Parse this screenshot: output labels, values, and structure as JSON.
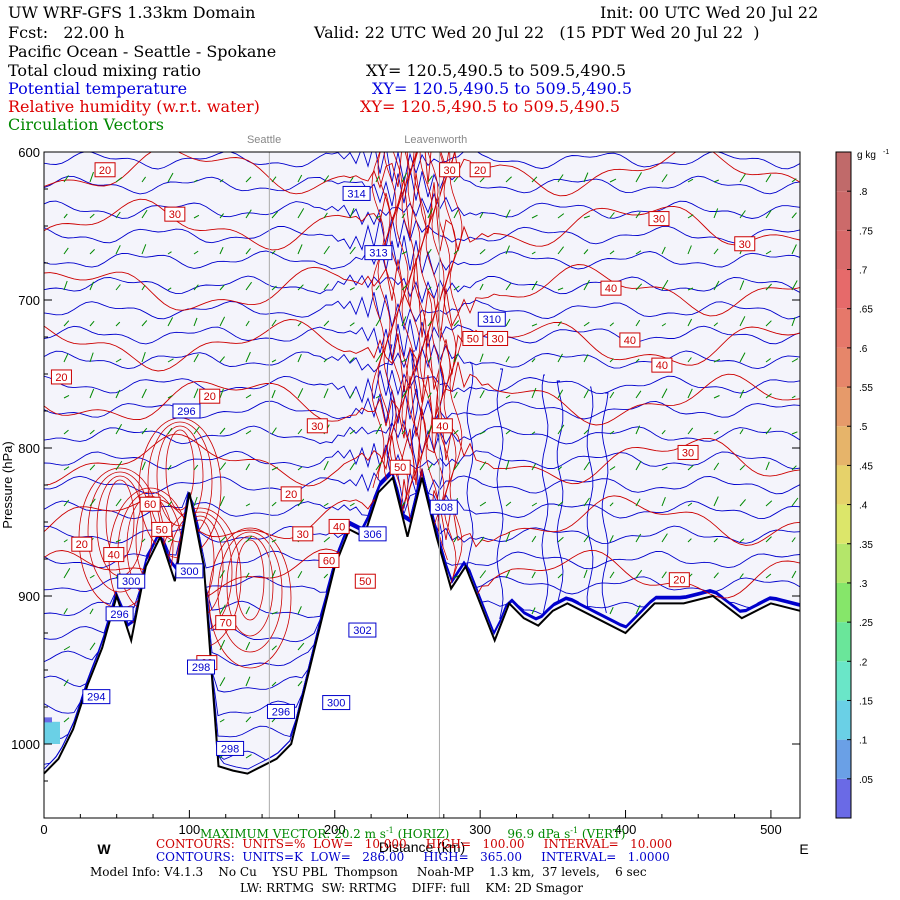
{
  "header": {
    "title": "UW WRF-GFS 1.33km Domain",
    "init": "Init: 00 UTC Wed 20 Jul 22",
    "fcst": "Fcst:   22.00 h",
    "valid": "Valid: 22 UTC Wed 20 Jul 22   (15 PDT Wed 20 Jul 22  )",
    "region": "Pacific Ocean - Seattle - Spokane",
    "fields": [
      {
        "name": "Total cloud mixing ratio",
        "xy": "XY= 120.5,490.5 to 509.5,490.5",
        "color": "#000000"
      },
      {
        "name": "Potential temperature",
        "xy": "XY= 120.5,490.5 to 509.5,490.5",
        "color": "#0000dd"
      },
      {
        "name": "Relative humidity (w.r.t. water)",
        "xy": "XY= 120.5,490.5 to 509.5,490.5",
        "color": "#dd0000"
      },
      {
        "name": "Circulation Vectors",
        "xy": "",
        "color": "#008800"
      }
    ]
  },
  "locations": [
    {
      "name": "Seattle",
      "x": 155
    },
    {
      "name": "Leavenworth",
      "x": 272
    }
  ],
  "chart_data": {
    "type": "cross-section contour",
    "xlabel": "Distance (km)",
    "ylabel": "Pressure (hPa)",
    "xlim": [
      0,
      520
    ],
    "ylim": [
      1050,
      600
    ],
    "x_ticks": [
      0,
      100,
      200,
      300,
      400,
      500
    ],
    "y_ticks": [
      600,
      700,
      800,
      900,
      1000
    ],
    "y_tick_labels": [
      "600",
      "700",
      "800",
      "900",
      "1000"
    ],
    "x_end_labels": {
      "west": "W",
      "east": "E"
    },
    "terrain_pressure": {
      "x": [
        0,
        10,
        20,
        30,
        40,
        50,
        60,
        70,
        80,
        90,
        100,
        110,
        120,
        130,
        140,
        150,
        160,
        170,
        180,
        190,
        200,
        210,
        220,
        230,
        240,
        250,
        255,
        260,
        270,
        280,
        290,
        300,
        310,
        320,
        330,
        340,
        350,
        360,
        380,
        400,
        420,
        440,
        460,
        480,
        500,
        520
      ],
      "p": [
        1020,
        1010,
        990,
        960,
        935,
        900,
        930,
        880,
        860,
        890,
        830,
        880,
        1015,
        1018,
        1020,
        1015,
        1010,
        1000,
        960,
        920,
        880,
        855,
        860,
        830,
        820,
        860,
        840,
        820,
        860,
        895,
        880,
        905,
        930,
        905,
        915,
        920,
        910,
        905,
        915,
        925,
        905,
        905,
        900,
        915,
        905,
        910
      ]
    },
    "contours": {
      "theta": {
        "units": "K",
        "low": "286.00",
        "high": "365.00",
        "interval": "1.0000",
        "labels": [
          {
            "x": 215,
            "p": 628,
            "v": "314"
          },
          {
            "x": 230,
            "p": 668,
            "v": "313"
          },
          {
            "x": 308,
            "p": 713,
            "v": "310"
          },
          {
            "x": 98,
            "p": 775,
            "v": "296"
          },
          {
            "x": 275,
            "p": 840,
            "v": "308"
          },
          {
            "x": 226,
            "p": 858,
            "v": "306"
          },
          {
            "x": 60,
            "p": 890,
            "v": "300"
          },
          {
            "x": 100,
            "p": 883,
            "v": "300"
          },
          {
            "x": 52,
            "p": 912,
            "v": "296"
          },
          {
            "x": 108,
            "p": 948,
            "v": "298"
          },
          {
            "x": 163,
            "p": 978,
            "v": "296"
          },
          {
            "x": 201,
            "p": 972,
            "v": "300"
          },
          {
            "x": 36,
            "p": 968,
            "v": "294"
          },
          {
            "x": 219,
            "p": 923,
            "v": "302"
          },
          {
            "x": 128,
            "p": 1003,
            "v": "298"
          }
        ]
      },
      "rh": {
        "units": "%",
        "low": "10.000",
        "high": "100.00",
        "interval": "10.000",
        "labels": [
          {
            "x": 42,
            "p": 612,
            "v": "20"
          },
          {
            "x": 90,
            "p": 642,
            "v": "30"
          },
          {
            "x": 279,
            "p": 612,
            "v": "30"
          },
          {
            "x": 300,
            "p": 612,
            "v": "20"
          },
          {
            "x": 423,
            "p": 645,
            "v": "30"
          },
          {
            "x": 482,
            "p": 662,
            "v": "30"
          },
          {
            "x": 390,
            "p": 692,
            "v": "40"
          },
          {
            "x": 403,
            "p": 727,
            "v": "40"
          },
          {
            "x": 425,
            "p": 744,
            "v": "40"
          },
          {
            "x": 295,
            "p": 726,
            "v": "50"
          },
          {
            "x": 312,
            "p": 726,
            "v": "30"
          },
          {
            "x": 12,
            "p": 752,
            "v": "20"
          },
          {
            "x": 114,
            "p": 765,
            "v": "20"
          },
          {
            "x": 188,
            "p": 785,
            "v": "30"
          },
          {
            "x": 274,
            "p": 785,
            "v": "40"
          },
          {
            "x": 443,
            "p": 803,
            "v": "30"
          },
          {
            "x": 245,
            "p": 813,
            "v": "50"
          },
          {
            "x": 170,
            "p": 831,
            "v": "20"
          },
          {
            "x": 73,
            "p": 838,
            "v": "60"
          },
          {
            "x": 81,
            "p": 855,
            "v": "50"
          },
          {
            "x": 26,
            "p": 865,
            "v": "20"
          },
          {
            "x": 48,
            "p": 872,
            "v": "40"
          },
          {
            "x": 178,
            "p": 858,
            "v": "30"
          },
          {
            "x": 203,
            "p": 853,
            "v": "40"
          },
          {
            "x": 196,
            "p": 876,
            "v": "60"
          },
          {
            "x": 437,
            "p": 889,
            "v": "20"
          },
          {
            "x": 125,
            "p": 918,
            "v": "70"
          },
          {
            "x": 112,
            "p": 945,
            "v": "60"
          },
          {
            "x": 221,
            "p": 890,
            "v": "50"
          }
        ]
      },
      "cloud": {
        "units": "g kg-1"
      }
    },
    "colorbar": {
      "unit": "g kg",
      "unit_sup": "-1",
      "ticks": [
        ".8",
        ".75",
        ".7",
        ".65",
        ".6",
        ".55",
        ".5",
        ".45",
        ".4",
        ".35",
        ".3",
        ".25",
        ".2",
        ".15",
        ".1",
        ".05"
      ],
      "colors_bottom_to_top": [
        "#6a6ae6",
        "#6aa0e6",
        "#6ad0e6",
        "#6ae6c8",
        "#6ae69a",
        "#86e66a",
        "#b4e66a",
        "#dce66a",
        "#e6d26a",
        "#e6b46a",
        "#e69a6a",
        "#e6866a",
        "#e6786a",
        "#e66a6a",
        "#d86a6a",
        "#cc6a6a",
        "#c06a6a"
      ]
    }
  },
  "footer": {
    "max_vector": "MAXIMUM VECTOR: 20.2 m s",
    "max_vector_sup": "-1",
    "max_vector_horiz": " (HORIZ)",
    "max_vector_vert": "96.9 dPa s",
    "max_vector_vert_sup": "-1",
    "max_vector_vert_end": " (VERT)",
    "rh_line": "CONTOURS:  UNITS=%  LOW=   10.000     HIGH=   100.00     INTERVAL=   10.000",
    "theta_line": "CONTOURS:  UNITS=K  LOW=   286.00     HIGH=   365.00     INTERVAL=   1.0000",
    "model_info": "Model Info: V4.1.3    No Cu    YSU PBL  Thompson     Noah-MP    1.3 km,  37 levels,    6 sec",
    "physics": "LW: RRTMG  SW: RRTMG    DIFF: full    KM: 2D Smagor"
  },
  "colors": {
    "theta": "#0000cc",
    "rh": "#cc0000",
    "vectors": "#008800",
    "terrain": "#000000",
    "shading": "#f4f4fb"
  }
}
